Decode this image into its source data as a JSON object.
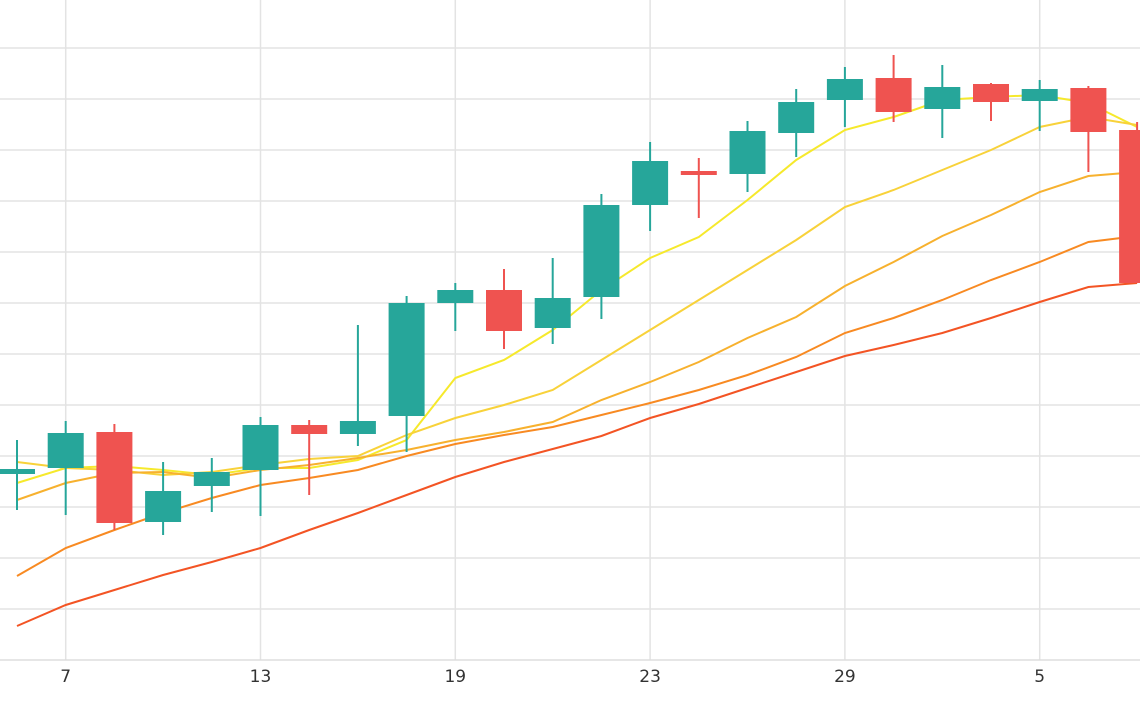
{
  "chart_data": {
    "type": "candlestick",
    "categories": [
      null,
      "7",
      null,
      null,
      null,
      "13",
      null,
      null,
      null,
      "19",
      null,
      null,
      null,
      "23",
      null,
      null,
      null,
      "29",
      null,
      null,
      null,
      "5",
      null,
      null
    ],
    "candles": {
      "open": [
        186,
        192,
        228,
        138,
        174,
        190,
        235,
        226,
        244,
        357,
        370,
        332,
        363,
        455,
        489,
        486,
        527,
        560,
        582,
        551,
        576,
        559,
        572,
        530
      ],
      "high": [
        220,
        239,
        236,
        198,
        202,
        243,
        240,
        335,
        364,
        377,
        391,
        402,
        466,
        518,
        502,
        539,
        571,
        593,
        605,
        595,
        577,
        580,
        574,
        538
      ],
      "low": [
        150,
        145,
        130,
        125,
        148,
        144,
        165,
        214,
        208,
        329,
        311,
        316,
        341,
        429,
        442,
        468,
        503,
        533,
        538,
        522,
        539,
        529,
        488,
        377
      ],
      "close": [
        191,
        227,
        137,
        169,
        188,
        235,
        226,
        239,
        357,
        370,
        329,
        362,
        455,
        499,
        485,
        529,
        558,
        581,
        548,
        573,
        558,
        571,
        528,
        377
      ]
    },
    "up_color": "#26a69a",
    "down_color": "#ef5350",
    "overlays": [
      {
        "color": "#f6e92c",
        "values": [
          177,
          192,
          194,
          190,
          185,
          192,
          192,
          200,
          220,
          282,
          300,
          330,
          370,
          402,
          423,
          460,
          500,
          530,
          543,
          560,
          563,
          565,
          557,
          533
        ]
      },
      {
        "color": "#f8d23a",
        "values": [
          198,
          192,
          190,
          185,
          188,
          195,
          201,
          204,
          225,
          242,
          255,
          270,
          300,
          330,
          360,
          390,
          420,
          453,
          470,
          490,
          510,
          533,
          543,
          535
        ]
      },
      {
        "color": "#f7b12e",
        "values": [
          160,
          177,
          187,
          188,
          182,
          190,
          195,
          202,
          210,
          220,
          228,
          238,
          260,
          278,
          298,
          322,
          343,
          374,
          398,
          424,
          445,
          468,
          484,
          488
        ]
      },
      {
        "color": "#f88a22",
        "values": [
          84,
          112,
          130,
          147,
          162,
          175,
          182,
          190,
          204,
          216,
          225,
          233,
          245,
          257,
          270,
          285,
          303,
          327,
          342,
          360,
          380,
          398,
          418,
          424
        ]
      },
      {
        "color": "#f35424",
        "values": [
          34,
          55,
          70,
          85,
          98,
          112,
          130,
          147,
          165,
          183,
          198,
          211,
          224,
          242,
          256,
          272,
          288,
          304,
          315,
          327,
          342,
          358,
          373,
          377
        ]
      }
    ],
    "ylim": [
      0,
      660
    ],
    "yticks": [
      51,
      102,
      153,
      204,
      255,
      306,
      357,
      408,
      459,
      510,
      561,
      612
    ],
    "grid": true
  }
}
